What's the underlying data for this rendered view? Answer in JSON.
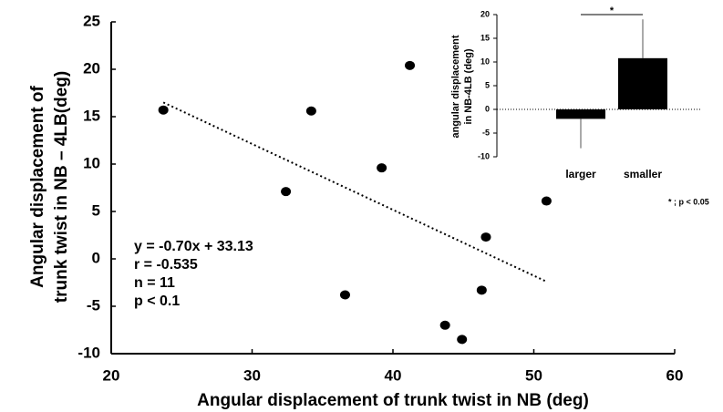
{
  "chart_data": [
    {
      "type": "scatter",
      "x_label": "Angular displacement of trunk twist in NB (deg)",
      "y_label": [
        "Angular displacement of",
        "trunk twist in NB – 4LB(deg)"
      ],
      "x": [
        23.7,
        34.2,
        41.2,
        39.2,
        32.4,
        50.9,
        46.6,
        36.6,
        46.3,
        43.7,
        44.9
      ],
      "values": [
        15.7,
        15.6,
        20.4,
        9.6,
        7.1,
        6.1,
        2.3,
        -3.8,
        -3.3,
        -7.0,
        -8.5
      ],
      "color": "#000000",
      "trendline": {
        "x": [
          23.7,
          50.9
        ],
        "y": [
          16.5,
          -2.4
        ]
      },
      "annotations": [
        "y = -0.70x + 33.13",
        "r = -0.535",
        "n = 11",
        "p < 0.1"
      ],
      "xlim": [
        20,
        60
      ],
      "xticks": [
        20,
        30,
        40,
        50,
        60
      ],
      "ylim": [
        -10,
        25
      ],
      "yticks": [
        -10,
        -5,
        0,
        5,
        10,
        15,
        20,
        25
      ]
    },
    {
      "type": "bar",
      "y_label": [
        "angular displacement",
        "in NB-4LB (deg)"
      ],
      "categories": [
        "larger",
        "smaller"
      ],
      "values": [
        -2,
        10.8
      ],
      "errors": [
        6.2,
        8.2
      ],
      "color": "#000000",
      "significance": {
        "label": "*",
        "value": 20
      },
      "footnote": "* ; p < 0.05",
      "ylim": [
        -10,
        20
      ],
      "yticks": [
        -10,
        -5,
        0,
        5,
        10,
        15,
        20
      ]
    }
  ]
}
